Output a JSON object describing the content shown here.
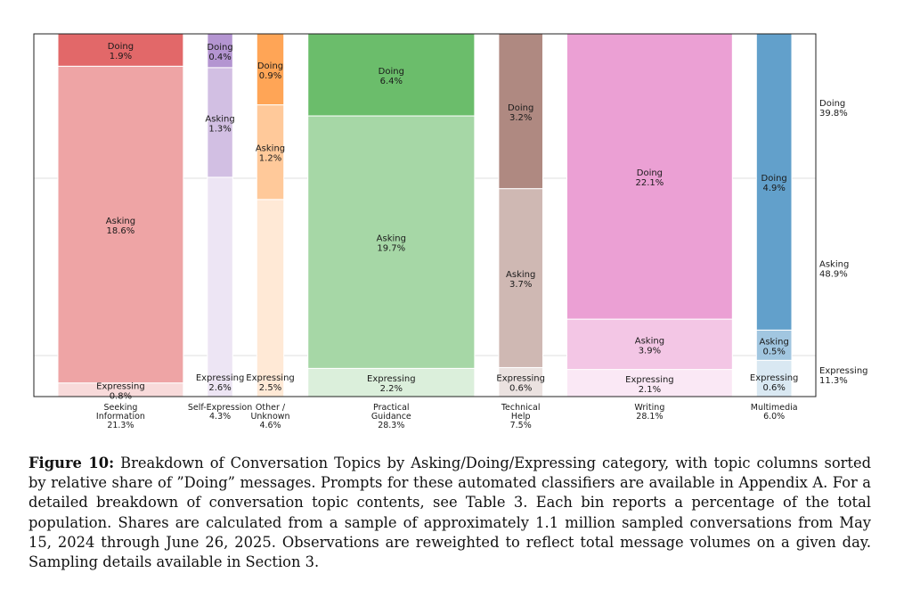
{
  "chart_data": {
    "type": "bar",
    "subtype": "mosaic (variable-width stacked 100% bars)",
    "stack_order_bottom_to_top": [
      "Expressing",
      "Asking",
      "Doing"
    ],
    "ylim": [
      0,
      100
    ],
    "grid": "horizontal lines at overall Expressing and Expressing+Asking shares",
    "categories": [
      {
        "name": "Seeking Information",
        "label_lines": [
          "Seeking",
          "Information",
          "21.3%"
        ],
        "share": 21.3,
        "color": "#d62728",
        "segments": [
          {
            "type": "Expressing",
            "value": 0.8
          },
          {
            "type": "Asking",
            "value": 18.6
          },
          {
            "type": "Doing",
            "value": 1.9
          }
        ]
      },
      {
        "name": "Self-Expression",
        "label_lines": [
          "Self-Expression",
          "4.3%"
        ],
        "share": 4.3,
        "color": "#9467bd",
        "segments": [
          {
            "type": "Expressing",
            "value": 2.6
          },
          {
            "type": "Asking",
            "value": 1.3
          },
          {
            "type": "Doing",
            "value": 0.4
          }
        ]
      },
      {
        "name": "Other / Unknown",
        "label_lines": [
          "Other /",
          "Unknown",
          "4.6%"
        ],
        "share": 4.6,
        "color": "#ff7f0e",
        "segments": [
          {
            "type": "Expressing",
            "value": 2.5
          },
          {
            "type": "Asking",
            "value": 1.2
          },
          {
            "type": "Doing",
            "value": 0.9
          }
        ]
      },
      {
        "name": "Practical Guidance",
        "label_lines": [
          "Practical",
          "Guidance",
          "28.3%"
        ],
        "share": 28.3,
        "color": "#2ca02c",
        "segments": [
          {
            "type": "Expressing",
            "value": 2.2
          },
          {
            "type": "Asking",
            "value": 19.7
          },
          {
            "type": "Doing",
            "value": 6.4
          }
        ]
      },
      {
        "name": "Technical Help",
        "label_lines": [
          "Technical",
          "Help",
          "7.5%"
        ],
        "share": 7.5,
        "color": "#8c564b",
        "segments": [
          {
            "type": "Expressing",
            "value": 0.6
          },
          {
            "type": "Asking",
            "value": 3.7
          },
          {
            "type": "Doing",
            "value": 3.2
          }
        ]
      },
      {
        "name": "Writing",
        "label_lines": [
          "Writing",
          "28.1%"
        ],
        "share": 28.1,
        "color": "#e377c2",
        "segments": [
          {
            "type": "Expressing",
            "value": 2.1
          },
          {
            "type": "Asking",
            "value": 3.9
          },
          {
            "type": "Doing",
            "value": 22.1
          }
        ]
      },
      {
        "name": "Multimedia",
        "label_lines": [
          "Multimedia",
          "6.0%"
        ],
        "share": 6.0,
        "color": "#1f77b4",
        "segments": [
          {
            "type": "Expressing",
            "value": 0.6
          },
          {
            "type": "Asking",
            "value": 0.5
          },
          {
            "type": "Doing",
            "value": 4.9
          }
        ]
      }
    ],
    "totals": [
      {
        "type": "Doing",
        "value": 39.8,
        "label_lines": [
          "Doing",
          "39.8%"
        ]
      },
      {
        "type": "Asking",
        "value": 48.9,
        "label_lines": [
          "Asking",
          "48.9%"
        ]
      },
      {
        "type": "Expressing",
        "value": 11.3,
        "label_lines": [
          "Expressing",
          "11.3%"
        ]
      }
    ]
  },
  "caption": {
    "label": "Figure 10:",
    "text": "Breakdown of Conversation Topics by Asking/Doing/Expressing category, with topic columns sorted by relative share of ”Doing” messages. Prompts for these automated classifiers are available in Appendix A. For a detailed breakdown of conversation topic contents, see Table 3. Each bin reports a percentage of the total population. Shares are calculated from a sample of approximately 1.1 million sampled conversations from May 15, 2024 through June 26, 2025. Observations are reweighted to reflect total message volumes on a given day. Sampling details available in Section 3."
  }
}
